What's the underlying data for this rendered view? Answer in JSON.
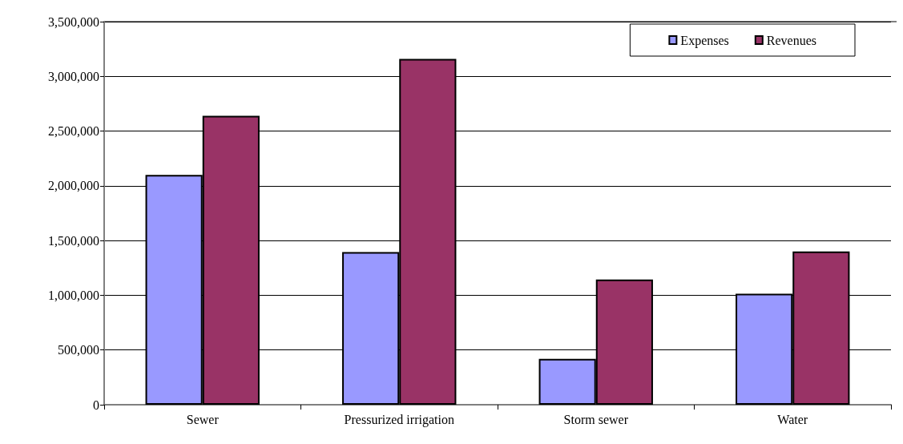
{
  "chart_data": {
    "type": "bar",
    "categories": [
      "Sewer",
      "Pressurized irrigation",
      "Storm sewer",
      "Water"
    ],
    "series": [
      {
        "name": "Expenses",
        "color": "#9999ff",
        "values": [
          2100000,
          1395000,
          420000,
          1015000
        ]
      },
      {
        "name": "Revenues",
        "color": "#993366",
        "values": [
          2640000,
          3160000,
          1145000,
          1400000
        ]
      }
    ],
    "ylim": [
      0,
      3500000
    ],
    "yticks": [
      0,
      {
        "value": 500000,
        "label": "500,000"
      },
      {
        "value": 1000000,
        "label": "1,000,000"
      },
      {
        "value": 1500000,
        "label": "1,500,000"
      },
      {
        "value": 2000000,
        "label": "2,000,000"
      },
      {
        "value": 2500000,
        "label": "2,500,000"
      },
      {
        "value": 3000000,
        "label": "3,000,000"
      },
      {
        "value": 3500000,
        "label": "3,500,000"
      }
    ],
    "grid": "y",
    "legend": "top right"
  }
}
